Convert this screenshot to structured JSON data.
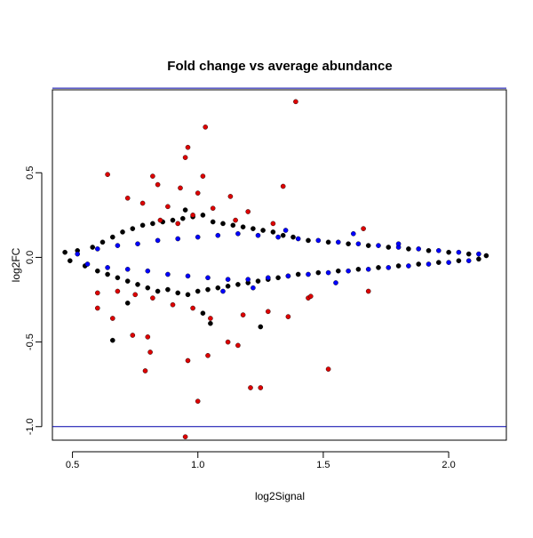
{
  "chart_data": {
    "type": "scatter",
    "title": "Fold change vs average abundance",
    "xlabel": "log2Signal",
    "ylabel": "log2FC",
    "xlim": [
      0.42,
      2.23
    ],
    "ylim": [
      -1.08,
      0.99
    ],
    "xticks": [
      0.5,
      1.0,
      1.5,
      2.0
    ],
    "yticks": [
      -1.0,
      -0.5,
      0.0,
      0.5
    ],
    "xtick_labels": [
      "0.5",
      "1.0",
      "1.5",
      "2.0"
    ],
    "ytick_labels": [
      "-1.0",
      "-0.5",
      "0.0",
      "0.5"
    ],
    "hlines": [
      {
        "y": 1.0,
        "color": "#0000aa"
      },
      {
        "y": -1.0,
        "color": "#0000aa"
      }
    ],
    "grid": false,
    "series": [
      {
        "color": "#000000",
        "points": [
          [
            0.47,
            0.03
          ],
          [
            0.49,
            -0.02
          ],
          [
            0.52,
            0.04
          ],
          [
            0.55,
            -0.05
          ],
          [
            0.58,
            0.06
          ],
          [
            0.6,
            -0.08
          ],
          [
            0.62,
            0.09
          ],
          [
            0.64,
            -0.1
          ],
          [
            0.66,
            0.12
          ],
          [
            0.68,
            -0.12
          ],
          [
            0.7,
            0.15
          ],
          [
            0.72,
            -0.14
          ],
          [
            0.74,
            0.17
          ],
          [
            0.76,
            -0.16
          ],
          [
            0.78,
            0.19
          ],
          [
            0.8,
            -0.18
          ],
          [
            0.82,
            0.2
          ],
          [
            0.84,
            -0.2
          ],
          [
            0.86,
            0.21
          ],
          [
            0.88,
            -0.19
          ],
          [
            0.9,
            0.22
          ],
          [
            0.92,
            -0.21
          ],
          [
            0.94,
            0.23
          ],
          [
            0.96,
            -0.22
          ],
          [
            0.98,
            0.24
          ],
          [
            1.0,
            -0.2
          ],
          [
            1.02,
            0.25
          ],
          [
            1.04,
            -0.19
          ],
          [
            1.06,
            0.21
          ],
          [
            1.08,
            -0.18
          ],
          [
            1.1,
            0.2
          ],
          [
            1.12,
            -0.17
          ],
          [
            1.14,
            0.19
          ],
          [
            1.16,
            -0.16
          ],
          [
            1.18,
            0.18
          ],
          [
            1.2,
            -0.15
          ],
          [
            1.22,
            0.17
          ],
          [
            1.24,
            -0.14
          ],
          [
            1.26,
            0.16
          ],
          [
            1.28,
            -0.13
          ],
          [
            1.3,
            0.15
          ],
          [
            1.32,
            -0.12
          ],
          [
            1.34,
            0.13
          ],
          [
            1.36,
            -0.11
          ],
          [
            1.38,
            0.12
          ],
          [
            1.4,
            -0.1
          ],
          [
            1.44,
            0.1
          ],
          [
            1.48,
            -0.09
          ],
          [
            1.52,
            0.09
          ],
          [
            1.56,
            -0.08
          ],
          [
            1.6,
            0.08
          ],
          [
            1.64,
            -0.07
          ],
          [
            1.68,
            0.07
          ],
          [
            1.72,
            -0.06
          ],
          [
            1.76,
            0.06
          ],
          [
            1.8,
            -0.05
          ],
          [
            1.84,
            0.05
          ],
          [
            1.88,
            -0.04
          ],
          [
            1.92,
            0.04
          ],
          [
            1.96,
            -0.03
          ],
          [
            2.0,
            0.03
          ],
          [
            2.04,
            -0.02
          ],
          [
            2.08,
            0.02
          ],
          [
            2.12,
            -0.01
          ],
          [
            2.15,
            0.01
          ],
          [
            0.66,
            -0.49
          ],
          [
            1.25,
            -0.41
          ],
          [
            1.05,
            -0.39
          ],
          [
            0.72,
            -0.27
          ],
          [
            0.95,
            0.28
          ],
          [
            1.02,
            -0.33
          ]
        ]
      },
      {
        "color": "#0000ff",
        "points": [
          [
            0.52,
            0.02
          ],
          [
            0.56,
            -0.04
          ],
          [
            0.6,
            0.05
          ],
          [
            0.64,
            -0.06
          ],
          [
            0.68,
            0.07
          ],
          [
            0.72,
            -0.07
          ],
          [
            0.76,
            0.08
          ],
          [
            0.8,
            -0.08
          ],
          [
            0.84,
            0.1
          ],
          [
            0.88,
            -0.1
          ],
          [
            0.92,
            0.11
          ],
          [
            0.96,
            -0.11
          ],
          [
            1.0,
            0.12
          ],
          [
            1.04,
            -0.12
          ],
          [
            1.08,
            0.13
          ],
          [
            1.12,
            -0.13
          ],
          [
            1.16,
            0.14
          ],
          [
            1.2,
            -0.13
          ],
          [
            1.24,
            0.13
          ],
          [
            1.28,
            -0.12
          ],
          [
            1.32,
            0.12
          ],
          [
            1.36,
            -0.11
          ],
          [
            1.4,
            0.11
          ],
          [
            1.44,
            -0.1
          ],
          [
            1.48,
            0.1
          ],
          [
            1.52,
            -0.09
          ],
          [
            1.56,
            0.09
          ],
          [
            1.6,
            -0.08
          ],
          [
            1.64,
            0.08
          ],
          [
            1.68,
            -0.07
          ],
          [
            1.72,
            0.07
          ],
          [
            1.76,
            -0.06
          ],
          [
            1.8,
            0.06
          ],
          [
            1.84,
            -0.05
          ],
          [
            1.88,
            0.05
          ],
          [
            1.92,
            -0.04
          ],
          [
            1.96,
            0.04
          ],
          [
            2.0,
            -0.03
          ],
          [
            2.04,
            0.03
          ],
          [
            2.08,
            -0.02
          ],
          [
            2.12,
            0.02
          ],
          [
            1.1,
            -0.2
          ],
          [
            1.22,
            -0.18
          ],
          [
            1.35,
            0.16
          ],
          [
            1.55,
            -0.15
          ],
          [
            1.62,
            0.14
          ],
          [
            1.8,
            0.08
          ]
        ]
      },
      {
        "color": "#dd0000",
        "points": [
          [
            1.39,
            0.92
          ],
          [
            1.03,
            0.77
          ],
          [
            0.96,
            0.65
          ],
          [
            0.95,
            0.59
          ],
          [
            0.64,
            0.49
          ],
          [
            0.82,
            0.48
          ],
          [
            1.02,
            0.48
          ],
          [
            0.84,
            0.43
          ],
          [
            1.34,
            0.42
          ],
          [
            0.93,
            0.41
          ],
          [
            1.0,
            0.38
          ],
          [
            1.13,
            0.36
          ],
          [
            0.72,
            0.35
          ],
          [
            0.78,
            0.32
          ],
          [
            0.88,
            0.3
          ],
          [
            1.06,
            0.29
          ],
          [
            1.2,
            0.27
          ],
          [
            0.98,
            0.25
          ],
          [
            0.85,
            0.22
          ],
          [
            0.92,
            0.2
          ],
          [
            1.15,
            0.22
          ],
          [
            1.3,
            0.2
          ],
          [
            1.66,
            0.17
          ],
          [
            0.6,
            -0.21
          ],
          [
            0.68,
            -0.2
          ],
          [
            0.75,
            -0.22
          ],
          [
            0.82,
            -0.24
          ],
          [
            0.9,
            -0.28
          ],
          [
            0.98,
            -0.3
          ],
          [
            1.05,
            -0.36
          ],
          [
            1.18,
            -0.34
          ],
          [
            1.28,
            -0.32
          ],
          [
            1.44,
            -0.24
          ],
          [
            1.68,
            -0.2
          ],
          [
            0.6,
            -0.3
          ],
          [
            0.66,
            -0.36
          ],
          [
            0.74,
            -0.46
          ],
          [
            0.8,
            -0.47
          ],
          [
            0.81,
            -0.56
          ],
          [
            0.79,
            -0.67
          ],
          [
            0.96,
            -0.61
          ],
          [
            1.04,
            -0.58
          ],
          [
            1.0,
            -0.85
          ],
          [
            0.95,
            -1.06
          ],
          [
            1.21,
            -0.77
          ],
          [
            1.25,
            -0.77
          ],
          [
            1.52,
            -0.66
          ],
          [
            1.12,
            -0.5
          ],
          [
            1.16,
            -0.52
          ],
          [
            1.36,
            -0.35
          ],
          [
            1.45,
            -0.23
          ]
        ]
      }
    ]
  }
}
